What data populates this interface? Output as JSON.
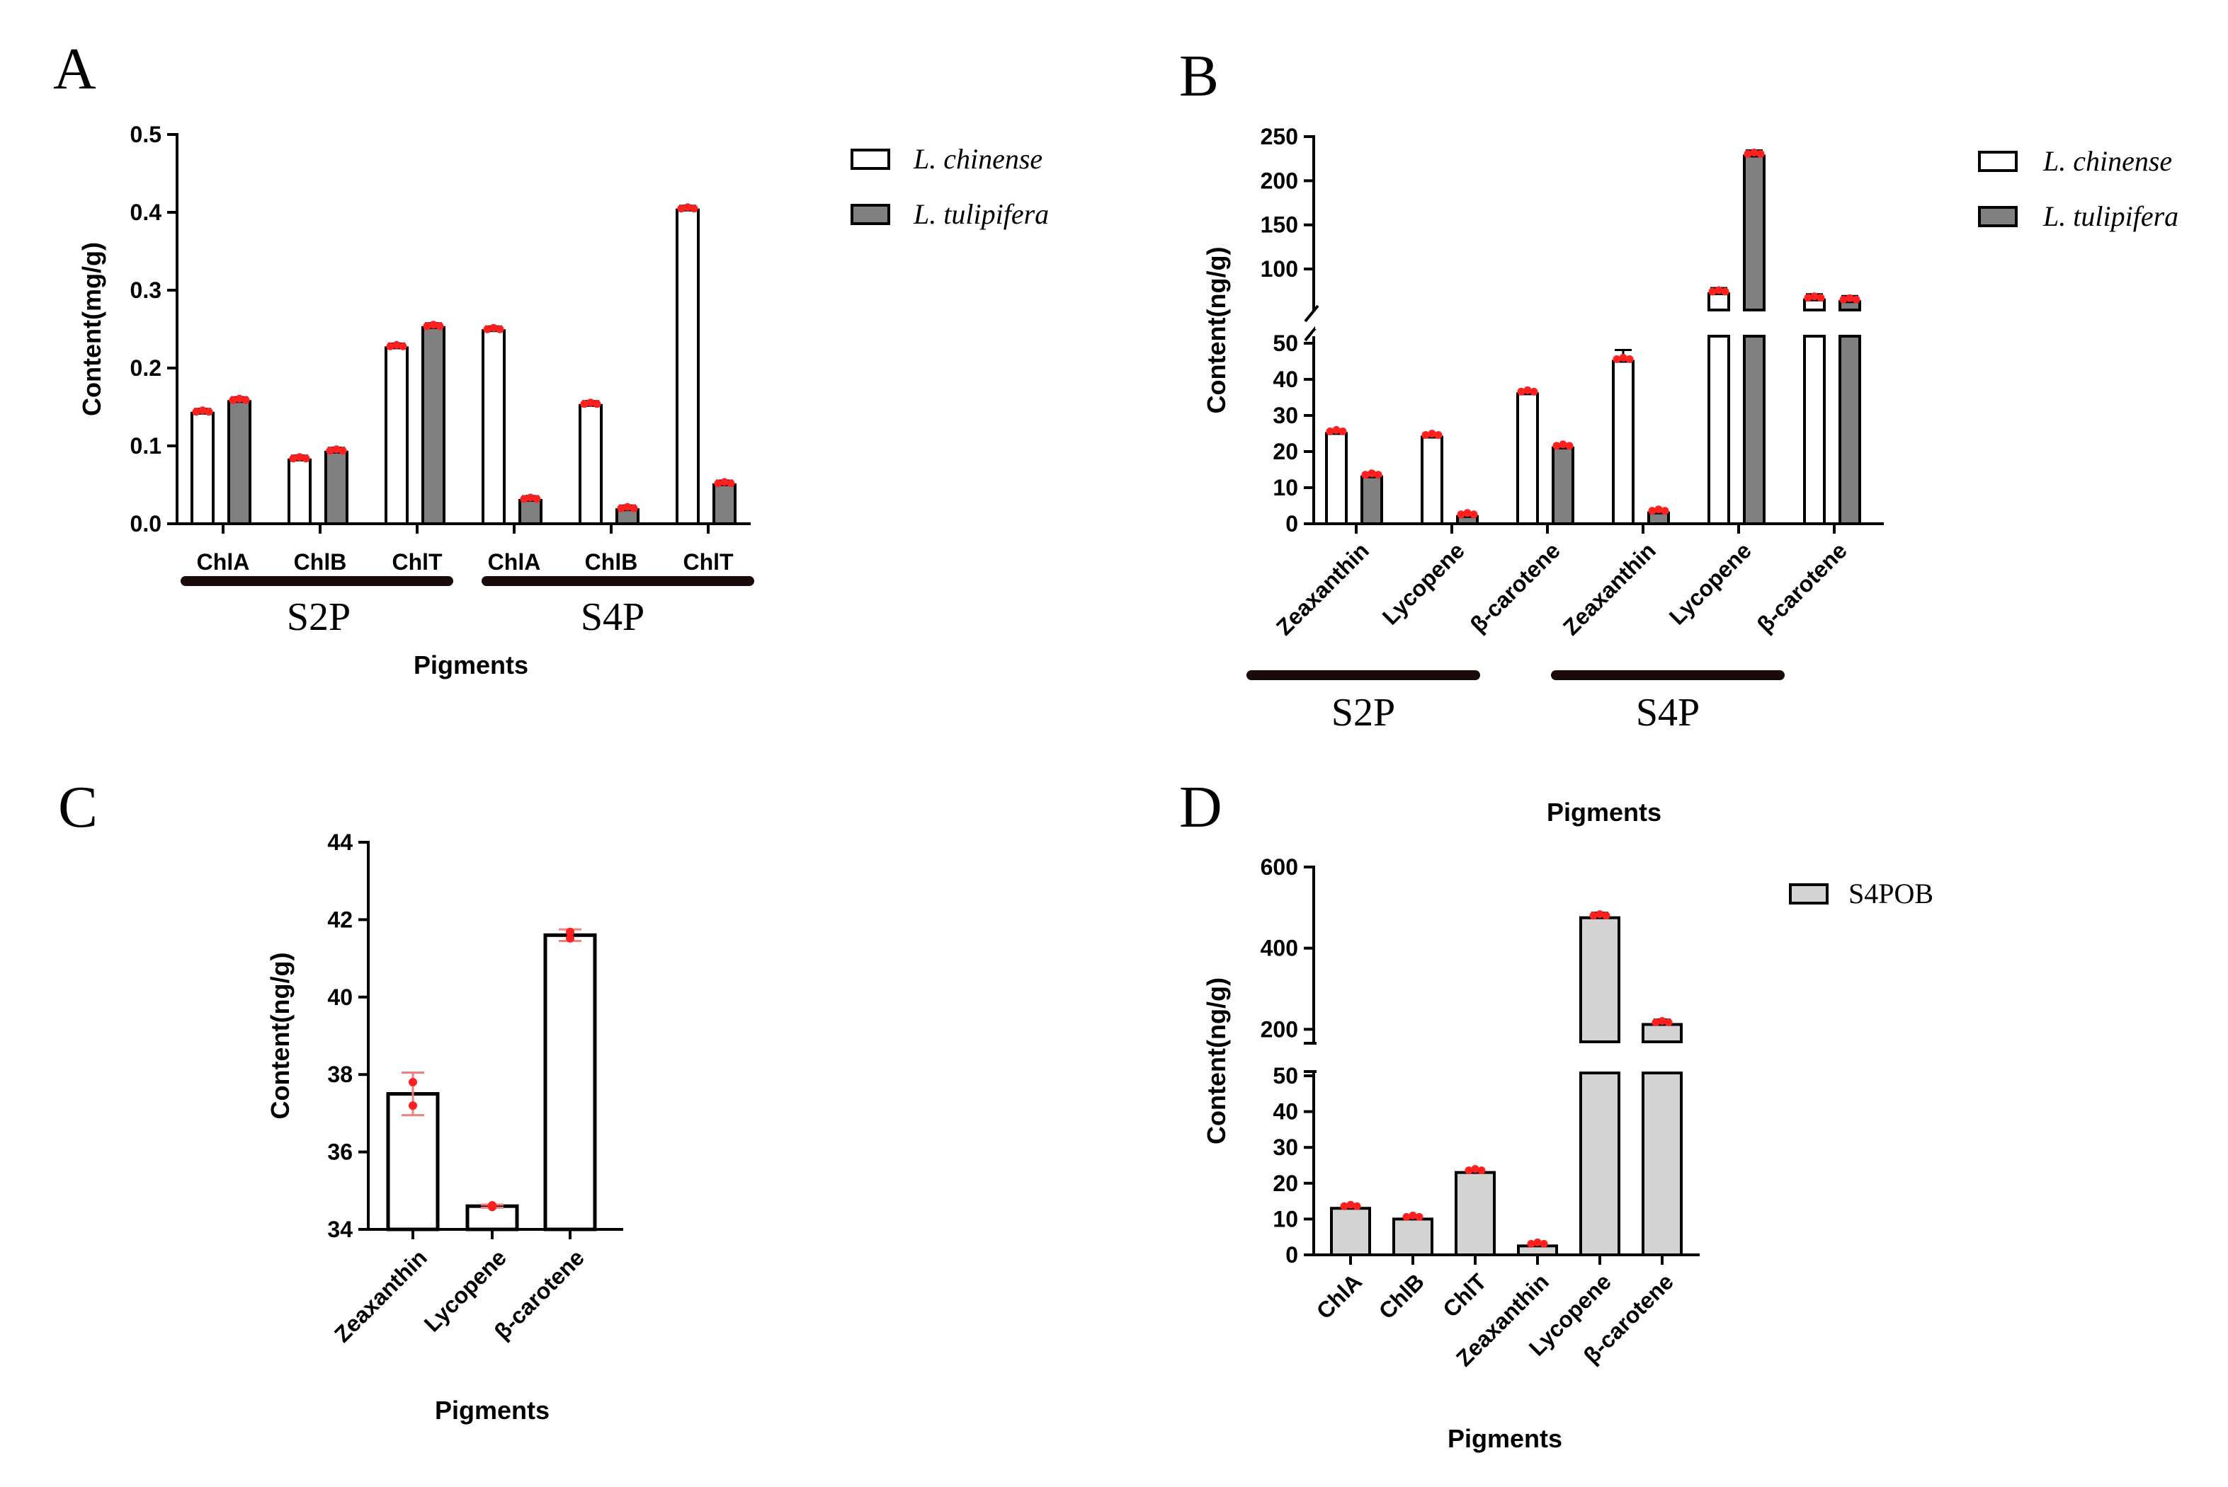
{
  "chart_data": [
    {
      "panel": "A",
      "type": "bar",
      "ylabel": "Content(mg/g)",
      "xlabel": "Pigments",
      "ylim": [
        0,
        0.5
      ],
      "yticks": [
        "0.0",
        "0.1",
        "0.2",
        "0.3",
        "0.4",
        "0.5"
      ],
      "categories": [
        "ChlA",
        "ChlB",
        "ChlT",
        "ChlA",
        "ChlB",
        "ChlT"
      ],
      "groups": [
        "S2P",
        "S4P"
      ],
      "series": [
        {
          "name": "L. chinense",
          "color": "#ffffff",
          "values": [
            0.142,
            0.082,
            0.226,
            0.248,
            0.152,
            0.403
          ]
        },
        {
          "name": "L. tulipifera",
          "color": "#808080",
          "values": [
            0.157,
            0.092,
            0.252,
            0.03,
            0.018,
            0.05
          ]
        }
      ]
    },
    {
      "panel": "B",
      "type": "bar",
      "ylabel": "Content(ng/g)",
      "ylim": [
        0,
        250
      ],
      "axis_break": [
        50,
        60
      ],
      "yticks_lower": [
        "0",
        "10",
        "20",
        "30",
        "40",
        "50"
      ],
      "yticks_upper": [
        "100",
        "150",
        "200",
        "250"
      ],
      "categories": [
        "Zeaxanthin",
        "Lycopene",
        "β-carotene",
        "Zeaxanthin",
        "Lycopene",
        "β-carotene"
      ],
      "groups": [
        "S2P",
        "S4P"
      ],
      "series": [
        {
          "name": "L. chinense",
          "color": "#ffffff",
          "values": [
            25,
            24,
            36,
            45,
            72,
            65
          ]
        },
        {
          "name": "L. tulipifera",
          "color": "#808080",
          "values": [
            13,
            2,
            21,
            3,
            228,
            63
          ]
        }
      ]
    },
    {
      "panel": "C",
      "type": "bar",
      "ylabel": "Content(ng/g)",
      "xlabel": "Pigments",
      "ylim": [
        34,
        44
      ],
      "yticks": [
        "34",
        "36",
        "38",
        "40",
        "42",
        "44"
      ],
      "categories": [
        "Zeaxanthin",
        "Lycopene",
        "β-carotene"
      ],
      "values": [
        37.5,
        34.6,
        41.6
      ],
      "errors": [
        0.55,
        0.04,
        0.15
      ],
      "color": "#ffffff"
    },
    {
      "panel": "D",
      "type": "bar",
      "title": "Pigments",
      "ylabel": "Content(ng/g)",
      "xlabel": "Pigments",
      "ylim": [
        0,
        600
      ],
      "axis_break": [
        50,
        150
      ],
      "yticks_lower": [
        "0",
        "10",
        "20",
        "30",
        "40",
        "50"
      ],
      "yticks_upper": [
        "200",
        "400",
        "600"
      ],
      "categories": [
        "ChlA",
        "ChlB",
        "ChlT",
        "Zeaxanthin",
        "Lycopene",
        "β-carotene"
      ],
      "series": [
        {
          "name": "S4POB",
          "color": "#d3d3d3",
          "values": [
            13,
            10,
            23,
            2.5,
            475,
            212
          ]
        }
      ]
    }
  ]
}
